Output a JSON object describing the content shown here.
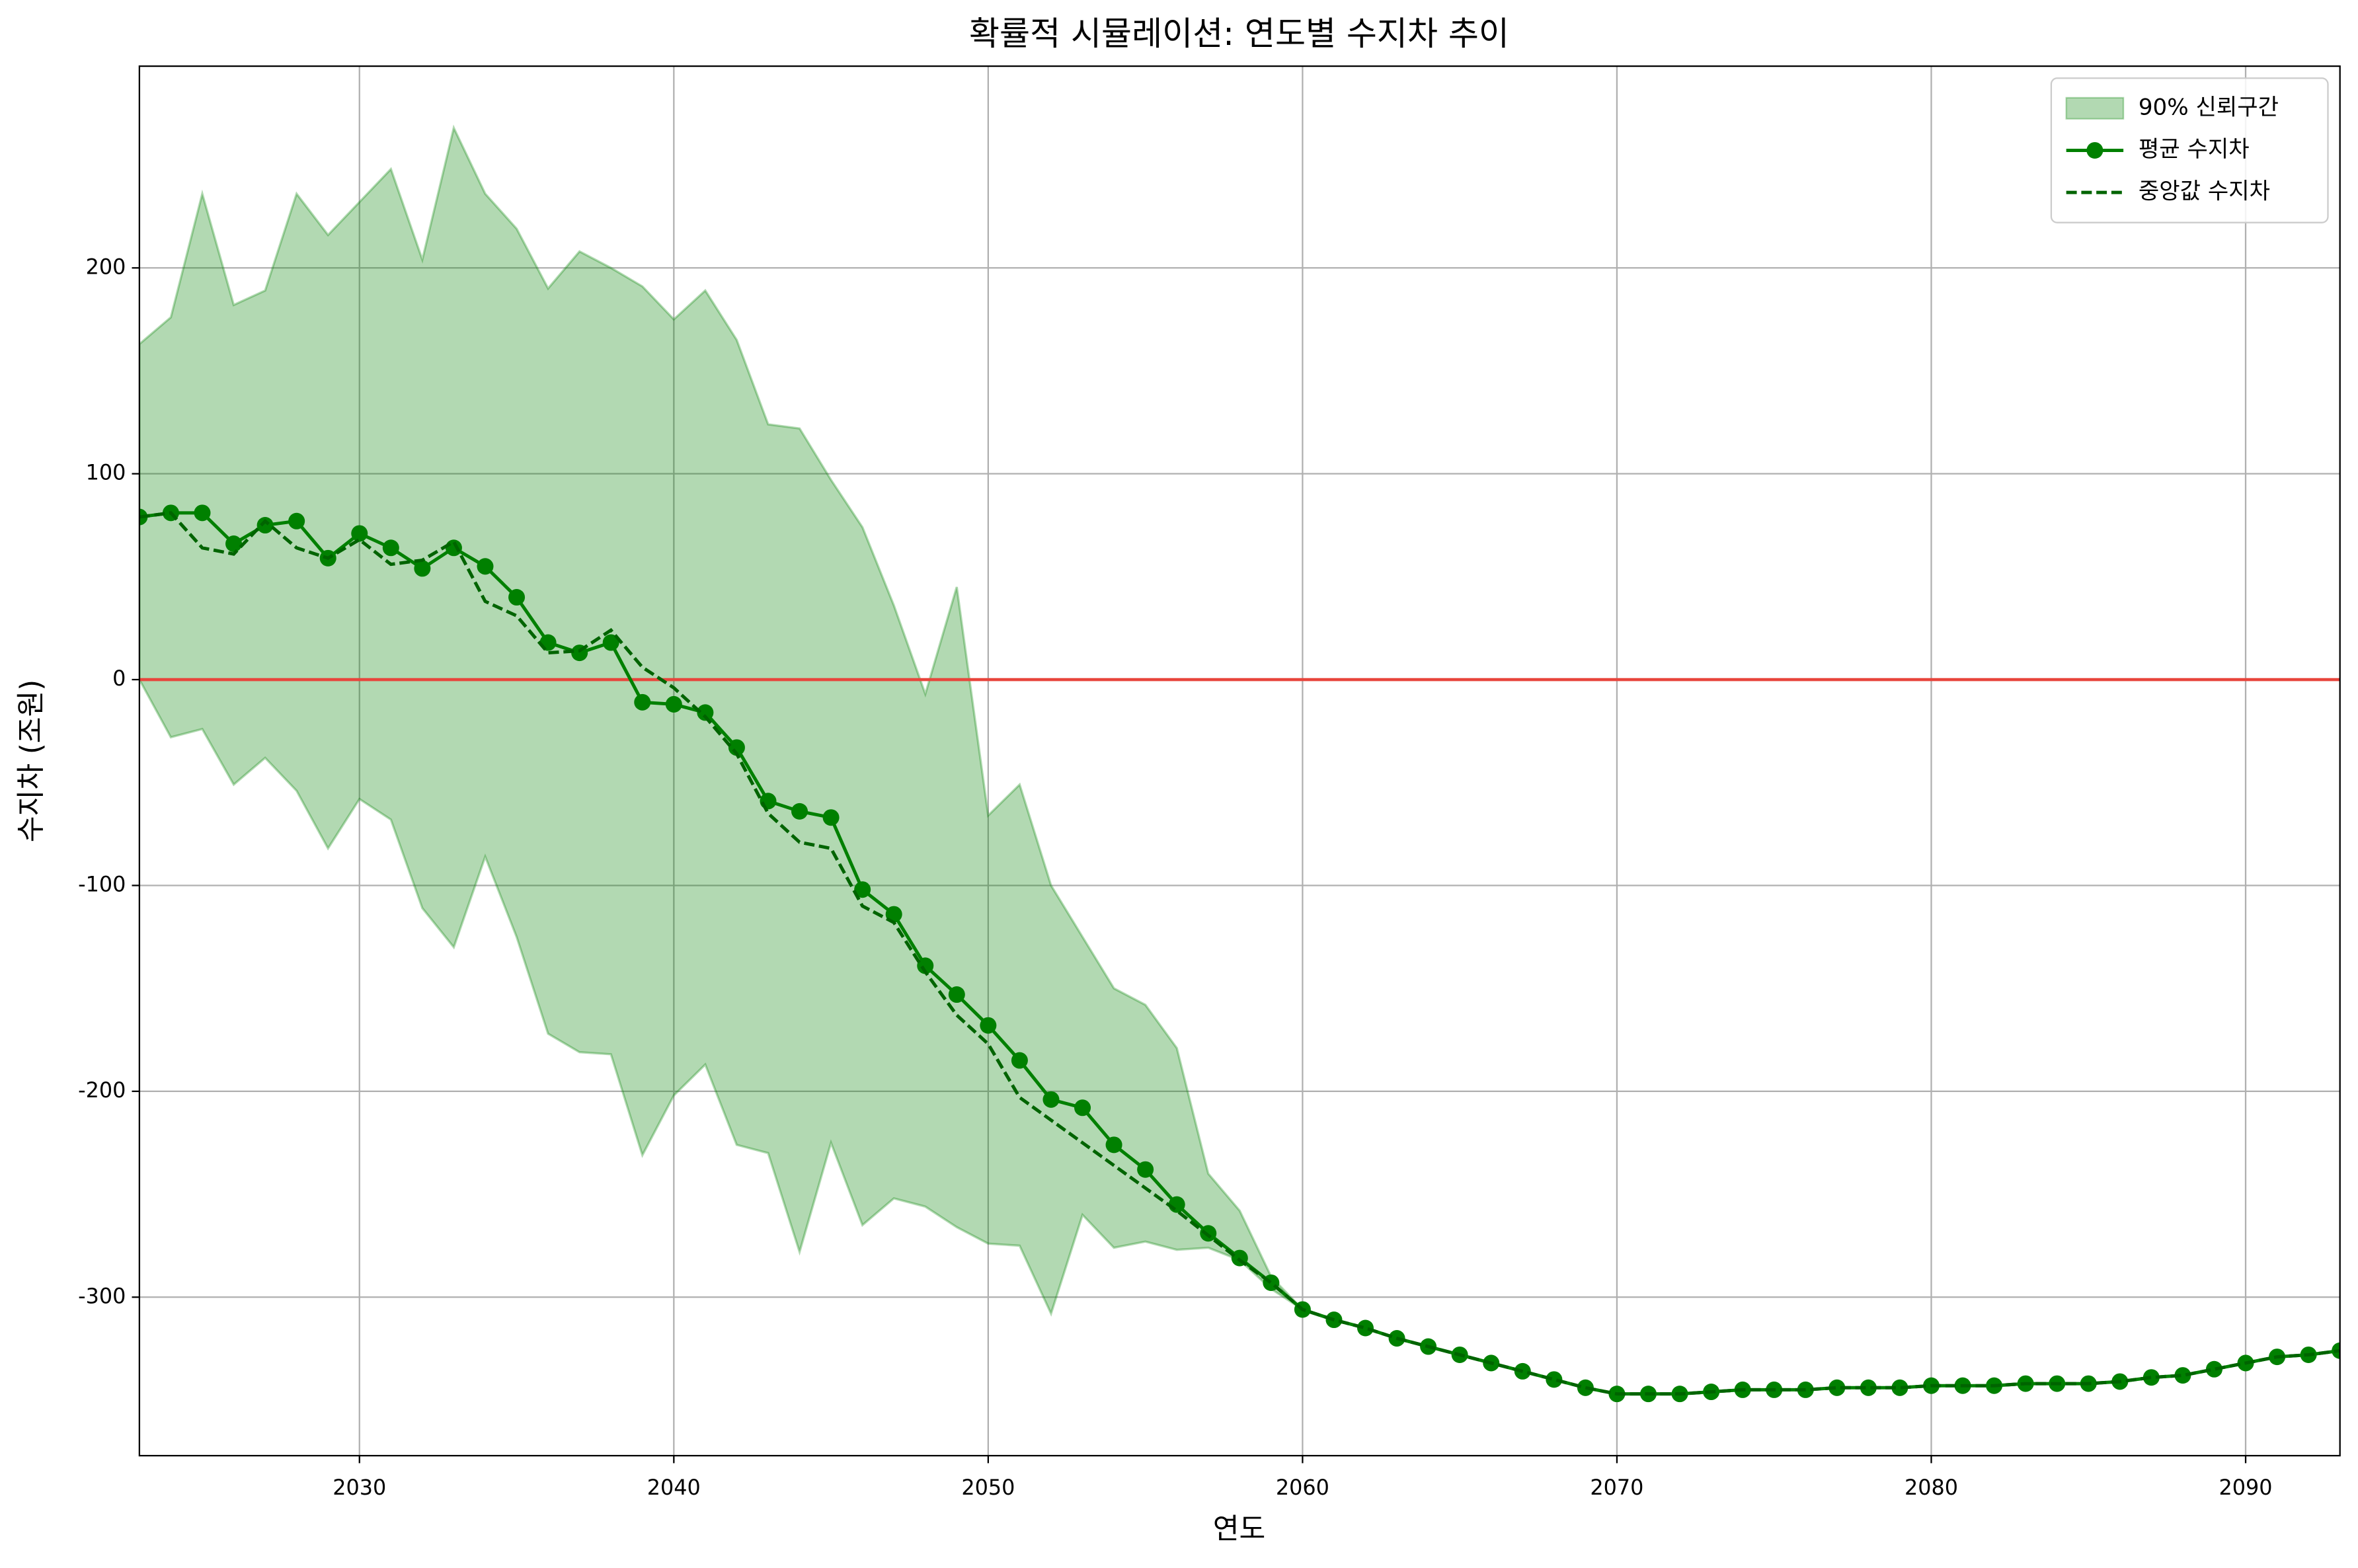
{
  "chart_data": {
    "type": "line",
    "title": "확률적 시뮬레이션: 연도별 수지차 추이",
    "xlabel": "연도",
    "ylabel": "수지차 (조원)",
    "x": [
      2023,
      2024,
      2025,
      2026,
      2027,
      2028,
      2029,
      2030,
      2031,
      2032,
      2033,
      2034,
      2035,
      2036,
      2037,
      2038,
      2039,
      2040,
      2041,
      2042,
      2043,
      2044,
      2045,
      2046,
      2047,
      2048,
      2049,
      2050,
      2051,
      2052,
      2053,
      2054,
      2055,
      2056,
      2057,
      2058,
      2059,
      2060,
      2061,
      2062,
      2063,
      2064,
      2065,
      2066,
      2067,
      2068,
      2069,
      2070,
      2071,
      2072,
      2073,
      2074,
      2075,
      2076,
      2077,
      2078,
      2079,
      2080,
      2081,
      2082,
      2083,
      2084,
      2085,
      2086,
      2087,
      2088,
      2089,
      2090,
      2091,
      2092,
      2093
    ],
    "series": [
      {
        "name": "90% 신뢰구간",
        "type": "band",
        "color": "#008000",
        "upper": [
          163,
          176,
          236,
          182,
          189,
          236,
          216,
          232,
          248,
          204,
          268,
          236,
          219,
          190,
          208,
          200,
          191,
          175,
          189,
          165,
          124,
          122,
          97,
          74,
          36,
          -7,
          45,
          -66,
          -51,
          -100,
          -125,
          -150,
          -158,
          -179,
          -240,
          -258,
          -290,
          -306,
          -311,
          -315,
          -320,
          -324,
          -328,
          -332,
          -336,
          -340,
          -344,
          -347,
          -347,
          -347,
          -346,
          -345,
          -345,
          -345,
          -344,
          -344,
          -344,
          -343,
          -343,
          -343,
          -342,
          -342,
          -342,
          -341,
          -339,
          -338,
          -335,
          -332,
          -329,
          -328,
          -326
        ],
        "lower": [
          0,
          -28,
          -24,
          -51,
          -38,
          -54,
          -82,
          -58,
          -68,
          -111,
          -130,
          -86,
          -125,
          -172,
          -181,
          -182,
          -231,
          -202,
          -187,
          -226,
          -230,
          -278,
          -225,
          -265,
          -252,
          -256,
          -266,
          -274,
          -275,
          -308,
          -260,
          -276,
          -273,
          -277,
          -276,
          -282,
          -296,
          -306,
          -311,
          -315,
          -320,
          -324,
          -328,
          -332,
          -336,
          -340,
          -344,
          -347,
          -347,
          -347,
          -346,
          -345,
          -345,
          -345,
          -344,
          -344,
          -344,
          -343,
          -343,
          -343,
          -342,
          -342,
          -342,
          -341,
          -339,
          -338,
          -335,
          -332,
          -329,
          -328,
          -326
        ]
      },
      {
        "name": "평균 수지차",
        "type": "line",
        "color": "#008000",
        "marker": "circle",
        "linestyle": "solid",
        "values": [
          79,
          81,
          81,
          66,
          75,
          77,
          59,
          71,
          64,
          54,
          64,
          55,
          40,
          18,
          13,
          18,
          -11,
          -12,
          -16,
          -33,
          -59,
          -64,
          -67,
          -102,
          -114,
          -139,
          -153,
          -168,
          -185,
          -204,
          -208,
          -226,
          -238,
          -255,
          -269,
          -281,
          -293,
          -306,
          -311,
          -315,
          -320,
          -324,
          -328,
          -332,
          -336,
          -340,
          -344,
          -347,
          -347,
          -347,
          -346,
          -345,
          -345,
          -345,
          -344,
          -344,
          -344,
          -343,
          -343,
          -343,
          -342,
          -342,
          -342,
          -341,
          -339,
          -338,
          -335,
          -332,
          -329,
          -328,
          -326
        ]
      },
      {
        "name": "중앙값 수지차",
        "type": "line",
        "color": "#006400",
        "linestyle": "dashed",
        "values": [
          79,
          81,
          64,
          61,
          77,
          64,
          59,
          68,
          56,
          58,
          67,
          38,
          31,
          13,
          14,
          24,
          6,
          -4,
          -18,
          -36,
          -65,
          -79,
          -82,
          -110,
          -118,
          -142,
          -163,
          -177,
          -203,
          -214,
          -225,
          -236,
          -247,
          -258,
          -270,
          -282,
          -293,
          -306,
          -311,
          -315,
          -320,
          -324,
          -328,
          -332,
          -336,
          -340,
          -344,
          -347,
          -347,
          -347,
          -346,
          -345,
          -345,
          -345,
          -344,
          -344,
          -344,
          -343,
          -343,
          -343,
          -342,
          -342,
          -342,
          -341,
          -339,
          -338,
          -335,
          -332,
          -329,
          -328,
          -326
        ]
      }
    ],
    "hlines": [
      {
        "y": 0,
        "color": "#e8453c"
      }
    ],
    "xlim": [
      2023,
      2093
    ],
    "ylim": [
      -377,
      298
    ],
    "xticks": [
      2030,
      2040,
      2050,
      2060,
      2070,
      2080,
      2090
    ],
    "yticks": [
      -300,
      -200,
      -100,
      0,
      100,
      200
    ],
    "grid": true,
    "legend": "upper right"
  }
}
